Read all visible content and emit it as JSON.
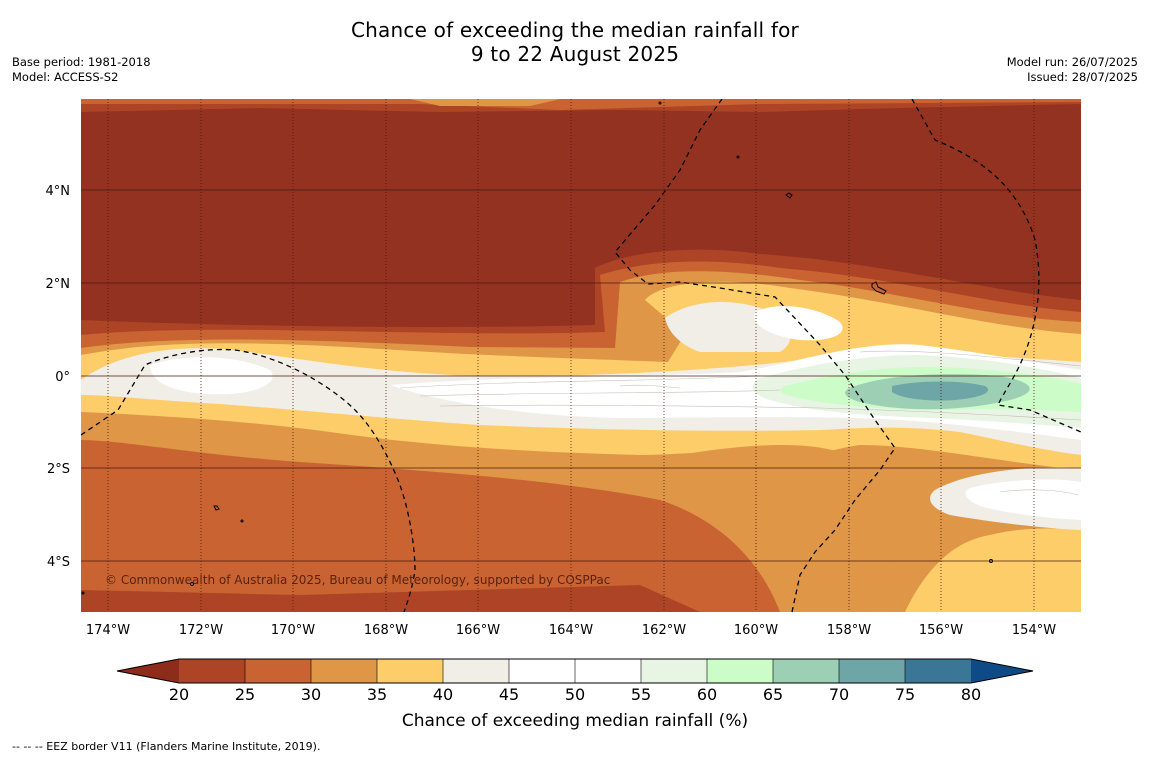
{
  "title": {
    "line1": "Chance of exceeding the median rainfall for",
    "line2": "9 to 22 August 2025"
  },
  "meta_left": {
    "base_period": "Base period: 1981-2018",
    "model": "Model: ACCESS-S2"
  },
  "meta_right": {
    "model_run": "Model run: 26/07/2025",
    "issued": "Issued: 28/07/2025"
  },
  "map": {
    "lon_ticks": [
      "174°W",
      "172°W",
      "170°W",
      "168°W",
      "166°W",
      "164°W",
      "162°W",
      "160°W",
      "158°W",
      "156°W",
      "154°W"
    ],
    "lat_ticks": [
      "4°N",
      "2°N",
      "0°",
      "2°S",
      "4°S"
    ],
    "credit": "© Commonwealth of Australia 2025, Bureau of Meteorology, supported by COSPPac"
  },
  "colorbar": {
    "ticks": [
      "20",
      "25",
      "30",
      "35",
      "40",
      "45",
      "50",
      "55",
      "60",
      "65",
      "70",
      "75",
      "80"
    ],
    "colors": {
      "under": "#8e2c1b",
      "20-25": "#ad4426",
      "25-30": "#c96432",
      "30-35": "#e09647",
      "35-40": "#fdcd6a",
      "40-45": "#f1ede7",
      "45-50": "#ffffff",
      "50-55": "#ffffff",
      "55-60": "#e8f4e4",
      "60-65": "#ccfcc8",
      "65-70": "#9dcfb4",
      "70-75": "#6ea5a6",
      "75-80": "#3a7797",
      "over": "#0e4a85"
    },
    "label": "Chance of exceeding median rainfall (%)"
  },
  "footnote": "--  --  -- EEZ border V11 (Flanders Marine Institute, 2019)."
}
